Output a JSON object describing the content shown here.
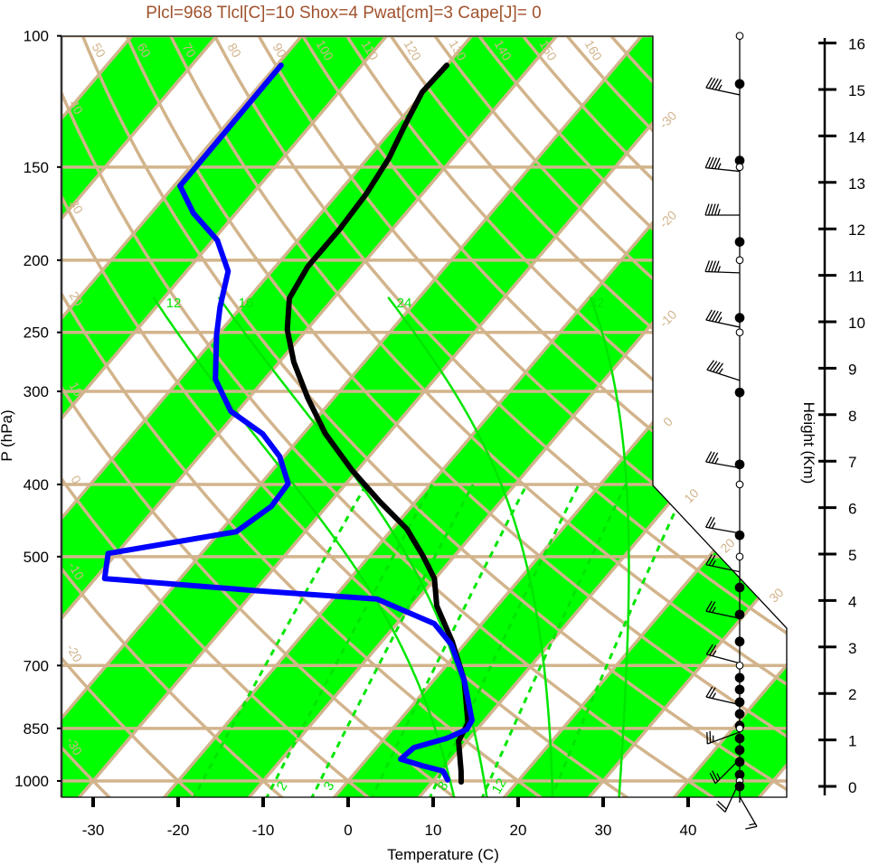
{
  "title": "Plcl=968 Tlcl[C]=10 Shox=4 Pwat[cm]=3 Cape[J]= 0",
  "colors": {
    "temperature": "#000000",
    "dewpoint": "#0000ff",
    "band": "#00ff00",
    "grid": "#d2b48c",
    "moist": "#00e600",
    "title": "#a0522d"
  },
  "chart_data": {
    "type": "skew-t",
    "title": "Plcl=968 Tlcl[C]=10 Shox=4 Pwat[cm]=3 Cape[J]= 0",
    "xlabel": "Temperature (C)",
    "ylabel": "P (hPa)",
    "y2label": "Height (Km)",
    "xlim": [
      -33.7,
      51.6
    ],
    "ylim_hpa": [
      1050,
      100
    ],
    "x_ticks": [
      "-30",
      "-20",
      "-10",
      "0",
      "10",
      "20",
      "30",
      "40"
    ],
    "x_tick_values": [
      -30,
      -20,
      -10,
      0,
      10,
      20,
      30,
      40
    ],
    "p_ticks": [
      "100",
      "150",
      "200",
      "250",
      "300",
      "400",
      "500",
      "700",
      "850",
      "1000"
    ],
    "p_tick_values": [
      100,
      150,
      200,
      250,
      300,
      400,
      500,
      700,
      850,
      1000
    ],
    "height_ticks_km": [
      "0",
      "1",
      "2",
      "3",
      "4",
      "5",
      "6",
      "7",
      "8",
      "9",
      "10",
      "11",
      "12",
      "13",
      "14",
      "15",
      "16"
    ],
    "isotherm_labels": [
      "-30",
      "-20",
      "-10",
      "0",
      "10",
      "20",
      "30"
    ],
    "isotherm_label_values": [
      -30,
      -20,
      -10,
      0,
      10,
      20,
      30
    ],
    "dry_adiabat_labels": [
      "-30",
      "-20",
      "-10",
      "0",
      "10",
      "20",
      "30",
      "40",
      "50",
      "60",
      "70",
      "80",
      "90",
      "100",
      "110",
      "120",
      "130",
      "140",
      "150",
      "160"
    ],
    "dry_adiabat_values_C": [
      -30,
      -20,
      -10,
      0,
      10,
      20,
      30,
      40,
      50,
      60,
      70,
      80,
      90,
      100,
      110,
      120,
      130,
      140,
      150,
      160
    ],
    "moist_adiabat_labels": [
      "12",
      "16",
      "24",
      "32"
    ],
    "moist_adiabat_values_C": [
      12,
      16,
      24,
      32
    ],
    "mixing_ratio_values_gkg": [
      1,
      2,
      3,
      5,
      8,
      12,
      20
    ],
    "mixing_ratio_labels": [
      "2",
      "3",
      "8",
      "12"
    ],
    "mixing_ratio_label_values": [
      2,
      3,
      8,
      12
    ],
    "series": [
      {
        "name": "temperature",
        "color": "#000000",
        "points_p_T": [
          [
            109.5,
            -60.0
          ],
          [
            119,
            -60.2
          ],
          [
            132,
            -58.9
          ],
          [
            146,
            -57.5
          ],
          [
            163,
            -56.6
          ],
          [
            182,
            -56.2
          ],
          [
            204,
            -56.2
          ],
          [
            225,
            -55.2
          ],
          [
            248,
            -52.3
          ],
          [
            274,
            -48.3
          ],
          [
            306,
            -43.1
          ],
          [
            342,
            -37.4
          ],
          [
            383,
            -30.6
          ],
          [
            422,
            -24.2
          ],
          [
            459,
            -18.3
          ],
          [
            499,
            -13.7
          ],
          [
            535,
            -10.1
          ],
          [
            582,
            -7.1
          ],
          [
            650,
            -1.7
          ],
          [
            733,
            3.6
          ],
          [
            836,
            8.3
          ],
          [
            884,
            9.0
          ],
          [
            970,
            12.3
          ],
          [
            1003,
            13.4
          ]
        ]
      },
      {
        "name": "dewpoint",
        "color": "#0000ff",
        "points_p_T": [
          [
            109.5,
            -79.5
          ],
          [
            159,
            -79.3
          ],
          [
            173,
            -75.0
          ],
          [
            188,
            -69.5
          ],
          [
            207,
            -65.1
          ],
          [
            231,
            -62.5
          ],
          [
            252,
            -60.1
          ],
          [
            289,
            -55.8
          ],
          [
            319,
            -50.8
          ],
          [
            342,
            -44.8
          ],
          [
            367,
            -40.5
          ],
          [
            399,
            -36.8
          ],
          [
            428,
            -36.5
          ],
          [
            463,
            -38.1
          ],
          [
            495,
            -51.0
          ],
          [
            535,
            -48.9
          ],
          [
            555,
            -30.3
          ],
          [
            570,
            -14.8
          ],
          [
            615,
            -5.6
          ],
          [
            656,
            -1.5
          ],
          [
            733,
            3.6
          ],
          [
            829,
            8.5
          ],
          [
            853,
            8.8
          ],
          [
            877,
            7.3
          ],
          [
            902,
            4.4
          ],
          [
            935,
            4.0
          ],
          [
            954,
            7.2
          ],
          [
            970,
            10.2
          ],
          [
            997,
            11.6
          ]
        ]
      }
    ],
    "wind_barbs": [
      {
        "p": 120,
        "dir": 282,
        "kt": 45
      },
      {
        "p": 152,
        "dir": 276,
        "kt": 45
      },
      {
        "p": 174,
        "dir": 270,
        "kt": 45
      },
      {
        "p": 208,
        "dir": 272,
        "kt": 45
      },
      {
        "p": 246,
        "dir": 282,
        "kt": 45
      },
      {
        "p": 290,
        "dir": 288,
        "kt": 45
      },
      {
        "p": 380,
        "dir": 280,
        "kt": 35
      },
      {
        "p": 465,
        "dir": 280,
        "kt": 25
      },
      {
        "p": 524,
        "dir": 282,
        "kt": 25
      },
      {
        "p": 605,
        "dir": 282,
        "kt": 25
      },
      {
        "p": 695,
        "dir": 285,
        "kt": 25
      },
      {
        "p": 790,
        "dir": 283,
        "kt": 25
      },
      {
        "p": 860,
        "dir": 250,
        "kt": 25
      },
      {
        "p": 935,
        "dir": 225,
        "kt": 25
      },
      {
        "p": 1000,
        "dir": 205,
        "kt": 20
      },
      {
        "p": 1050,
        "dir": 150,
        "kt": 15
      }
    ],
    "level_markers": [
      {
        "p": 100,
        "filled": false
      },
      {
        "p": 116,
        "filled": true
      },
      {
        "p": 147,
        "filled": true
      },
      {
        "p": 150,
        "filled": false
      },
      {
        "p": 189,
        "filled": true
      },
      {
        "p": 200,
        "filled": false
      },
      {
        "p": 239,
        "filled": true
      },
      {
        "p": 250,
        "filled": false
      },
      {
        "p": 301,
        "filled": true
      },
      {
        "p": 376,
        "filled": true
      },
      {
        "p": 400,
        "filled": false
      },
      {
        "p": 468,
        "filled": true
      },
      {
        "p": 500,
        "filled": false
      },
      {
        "p": 550,
        "filled": true
      },
      {
        "p": 598,
        "filled": true
      },
      {
        "p": 650,
        "filled": true
      },
      {
        "p": 700,
        "filled": false
      },
      {
        "p": 727,
        "filled": true
      },
      {
        "p": 754,
        "filled": true
      },
      {
        "p": 784,
        "filled": true
      },
      {
        "p": 813,
        "filled": true
      },
      {
        "p": 843,
        "filled": true
      },
      {
        "p": 850,
        "filled": false
      },
      {
        "p": 877,
        "filled": true
      },
      {
        "p": 909,
        "filled": true
      },
      {
        "p": 943,
        "filled": true
      },
      {
        "p": 981,
        "filled": true
      },
      {
        "p": 1000,
        "filled": false
      },
      {
        "p": 1017,
        "filled": true
      }
    ]
  }
}
